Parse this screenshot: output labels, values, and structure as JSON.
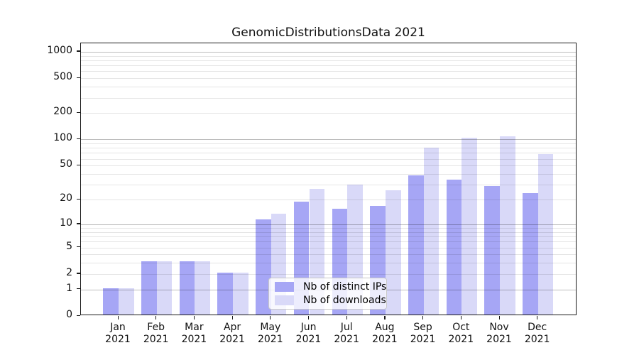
{
  "chart_data": {
    "type": "bar",
    "title": "GenomicDistributionsData 2021",
    "categories": [
      "Jan 2021",
      "Feb 2021",
      "Mar 2021",
      "Apr 2021",
      "May 2021",
      "Jun 2021",
      "Jul 2021",
      "Aug 2021",
      "Sep 2021",
      "Oct 2021",
      "Nov 2021",
      "Dec 2021"
    ],
    "series": [
      {
        "name": "Nb of distinct IPs",
        "color": "#a6a6f5",
        "values": [
          1,
          3,
          3,
          2,
          11,
          18,
          15,
          16,
          37,
          33,
          28,
          23
        ]
      },
      {
        "name": "Nb of downloads",
        "color": "#d9d9f8",
        "values": [
          1,
          3,
          3,
          2,
          13,
          26,
          29,
          25,
          78,
          101,
          104,
          65
        ]
      }
    ],
    "yscale": "log1p",
    "yticks": [
      0,
      1,
      2,
      5,
      10,
      20,
      50,
      100,
      200,
      500,
      1000
    ],
    "ylim": [
      0,
      1250
    ],
    "grid": "both",
    "legend_position": "lower-center-inside",
    "xlabel": "",
    "ylabel": ""
  },
  "colors": {
    "background": "#ffffff",
    "axis": "#1a1a1a",
    "major_grid": "#c2c2c2",
    "minor_grid": "#e6e6e6",
    "bar_dark": "#a6a6f5",
    "bar_light": "#d9d9f8",
    "text": "#111111"
  }
}
